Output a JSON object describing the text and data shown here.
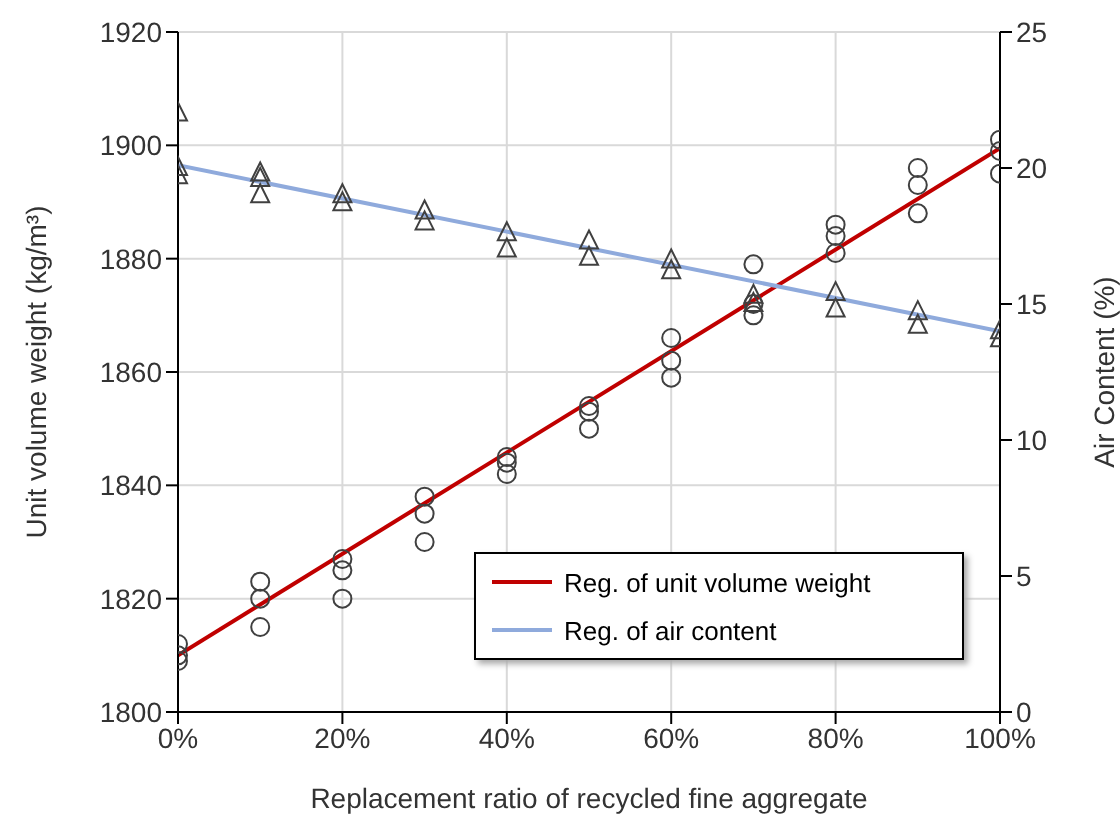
{
  "chart_data": {
    "type": "scatter",
    "xlabel": "Replacement ratio of recycled fine aggregate",
    "ylabel": "Unit volume weight (kg/m³)",
    "y2label": "Air Content (%)",
    "xlim": [
      0,
      1
    ],
    "xticks": [
      {
        "value": 0,
        "label": "0%"
      },
      {
        "value": 0.2,
        "label": "20%"
      },
      {
        "value": 0.4,
        "label": "40%"
      },
      {
        "value": 0.6,
        "label": "60%"
      },
      {
        "value": 0.8,
        "label": "80%"
      },
      {
        "value": 1,
        "label": "100%"
      }
    ],
    "ylim": [
      1800,
      1920
    ],
    "yticks": [
      1800,
      1820,
      1840,
      1860,
      1880,
      1900,
      1920
    ],
    "y2lim": [
      0,
      25
    ],
    "y2ticks": [
      0,
      5,
      10,
      15,
      20,
      25
    ],
    "grid": true,
    "legend": "bottom right",
    "series": [
      {
        "type": "scatter",
        "marker": "circle",
        "color": "#404040",
        "x": [
          0,
          0,
          0,
          0.1,
          0.1,
          0.1,
          0.2,
          0.2,
          0.2,
          0.3,
          0.3,
          0.3,
          0.4,
          0.4,
          0.4,
          0.5,
          0.5,
          0.5,
          0.6,
          0.6,
          0.6,
          0.7,
          0.7,
          0.7,
          0.8,
          0.8,
          0.8,
          0.9,
          0.9,
          0.9,
          1,
          1,
          1
        ],
        "values": [
          1812,
          1810,
          1809,
          1823,
          1820,
          1815,
          1827,
          1825,
          1820,
          1838,
          1835,
          1830,
          1845,
          1844,
          1842,
          1854,
          1853,
          1850,
          1866,
          1862,
          1859,
          1879,
          1872,
          1870,
          1886,
          1884,
          1881,
          1896,
          1893,
          1888,
          1901,
          1899,
          1895
        ]
      },
      {
        "type": "scatter",
        "marker": "triangle",
        "color": "#404040",
        "axis": "y2",
        "x": [
          0,
          0,
          0,
          0.1,
          0.1,
          0.1,
          0.2,
          0.2,
          0.3,
          0.3,
          0.4,
          0.4,
          0.5,
          0.5,
          0.6,
          0.6,
          0.7,
          0.7,
          0.8,
          0.8,
          0.9,
          0.9,
          1,
          1
        ],
        "values": [
          22,
          20,
          19.7,
          19.8,
          19.6,
          19,
          19,
          18.7,
          18.4,
          18,
          17.6,
          17,
          17.3,
          16.7,
          16.6,
          16.2,
          15.3,
          15,
          15.4,
          14.8,
          14.7,
          14.2,
          14,
          13.7
        ]
      },
      {
        "type": "line",
        "name": "Reg. of unit volume weight",
        "marker": "none",
        "color": "#c00000",
        "x": [
          0,
          1
        ],
        "values": [
          1810,
          1899.5
        ]
      },
      {
        "type": "line",
        "name": "Reg. of air content",
        "marker": "none",
        "color": "#8faadc",
        "axis": "y2",
        "x": [
          0,
          1
        ],
        "values": [
          20.1,
          14
        ]
      }
    ]
  }
}
